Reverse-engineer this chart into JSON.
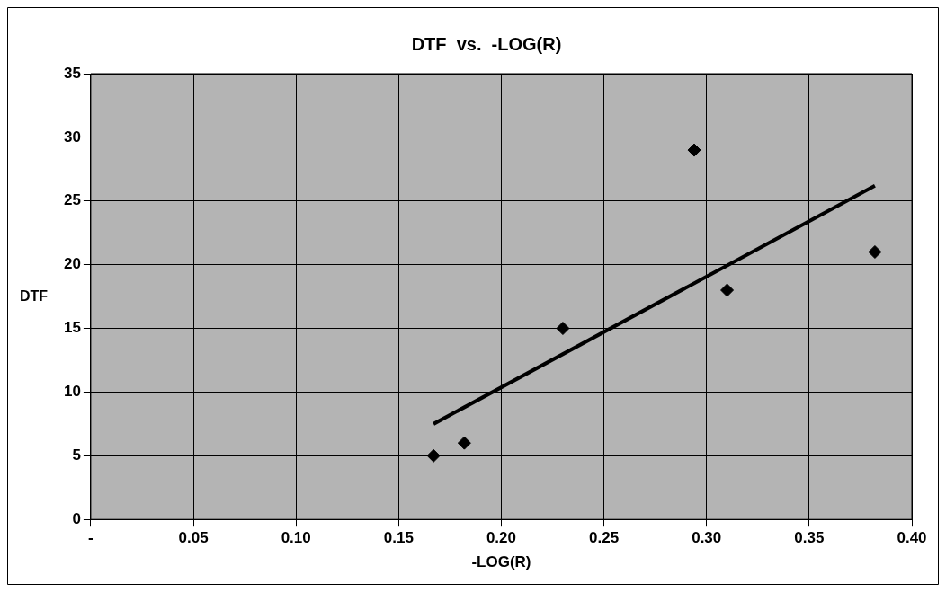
{
  "chart_data": {
    "type": "scatter",
    "title": "DTF  vs.  -LOG(R)",
    "xlabel": "-LOG(R)",
    "ylabel": "DTF",
    "series": [
      {
        "color": "#000000",
        "x": [
          0.167,
          0.182,
          0.23,
          0.294,
          0.31,
          0.382
        ],
        "values": [
          5,
          6,
          15,
          29,
          18,
          21
        ]
      },
      {
        "type": "line",
        "marker": "none",
        "color": "#000000",
        "x": [
          0.167,
          0.382
        ],
        "values": [
          7.5,
          26.2
        ]
      }
    ],
    "xlim": [
      0,
      0.4
    ],
    "xticks": [
      {
        "value": 0,
        "label": "-"
      },
      {
        "value": 0.05,
        "label": "0.05"
      },
      {
        "value": 0.1,
        "label": "0.10"
      },
      {
        "value": 0.15,
        "label": "0.15"
      },
      {
        "value": 0.2,
        "label": "0.20"
      },
      {
        "value": 0.25,
        "label": "0.25"
      },
      {
        "value": 0.3,
        "label": "0.30"
      },
      {
        "value": 0.35,
        "label": "0.35"
      },
      {
        "value": 0.4,
        "label": "0.40"
      }
    ],
    "ylim": [
      0,
      35
    ],
    "yticks": [
      0,
      5,
      10,
      15,
      20,
      25,
      30,
      35
    ],
    "grid": true,
    "legend": false,
    "marker": "diamond"
  }
}
